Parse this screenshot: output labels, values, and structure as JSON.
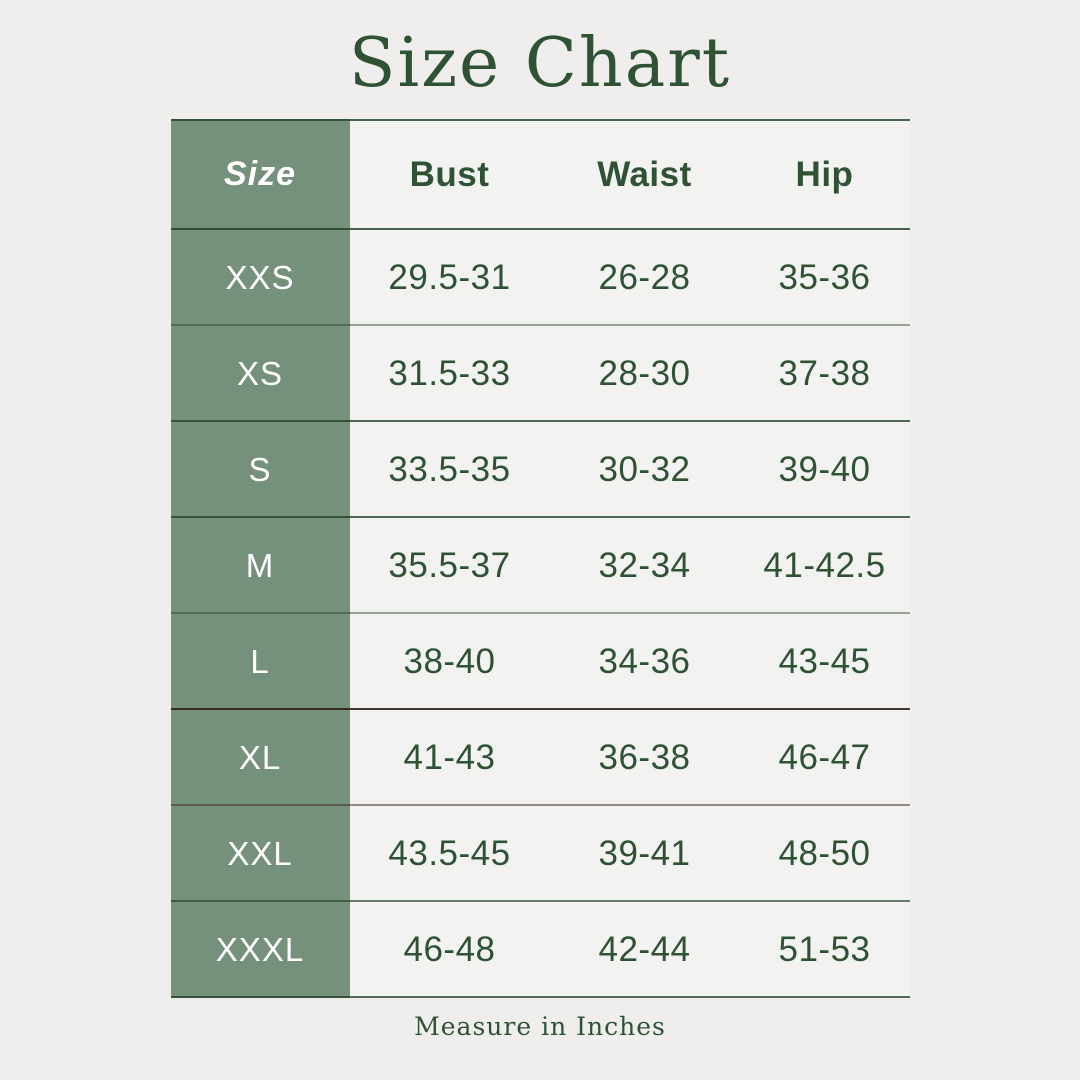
{
  "chart_data": {
    "type": "table",
    "title": "Size Chart",
    "columns": [
      "Size",
      "Bust",
      "Waist",
      "Hip"
    ],
    "rows": [
      [
        "XXS",
        "29.5-31",
        "26-28",
        "35-36"
      ],
      [
        "XS",
        "31.5-33",
        "28-30",
        "37-38"
      ],
      [
        "S",
        "33.5-35",
        "30-32",
        "39-40"
      ],
      [
        "M",
        "35.5-37",
        "32-34",
        "41-42.5"
      ],
      [
        "L",
        "38-40",
        "34-36",
        "43-45"
      ],
      [
        "XL",
        "41-43",
        "36-38",
        "46-47"
      ],
      [
        "XXL",
        "43.5-45",
        "39-41",
        "48-50"
      ],
      [
        "XXXL",
        "46-48",
        "42-44",
        "51-53"
      ]
    ],
    "footnote": "Measure in Inches"
  },
  "palette": {
    "colors": {
      "page_bg": "#efeeec",
      "table_bg": "#f2f2f1",
      "green_column": "#75907b",
      "dark_green": "#2e5233",
      "size_text": "#ffffff"
    },
    "separators": [
      "rgba(37,66,40,0.82)",
      "rgba(37,66,40,0.82)",
      "rgba(37,66,40,0.45)",
      "rgba(37,66,40,0.80)",
      "rgba(37,66,40,0.80)",
      "rgba(37,66,40,0.45)",
      "rgba(43,28,16,0.88)",
      "rgba(62,42,34,0.52)",
      "rgba(37,66,40,0.68)",
      "rgba(37,66,40,0.78)"
    ]
  }
}
